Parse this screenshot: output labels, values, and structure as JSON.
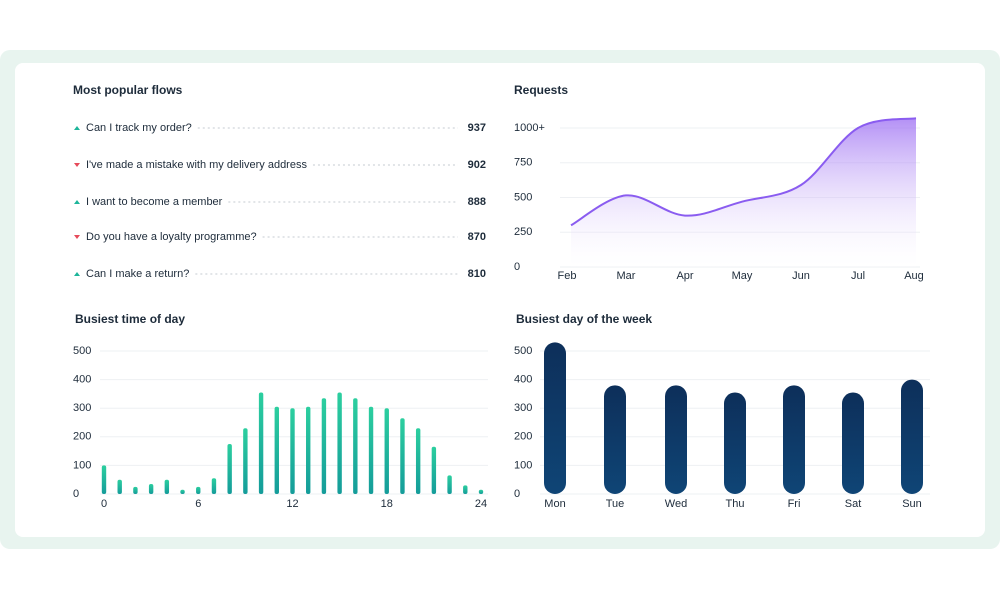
{
  "flows": {
    "title": "Most popular flows",
    "rows": [
      {
        "label": "Can I track my order?",
        "value": 937,
        "trend": "up"
      },
      {
        "label": "I've made a mistake with my delivery address",
        "value": 902,
        "trend": "down"
      },
      {
        "label": "I want to become a member",
        "value": 888,
        "trend": "up"
      },
      {
        "label": "Do you have a loyalty programme?",
        "value": 870,
        "trend": "down"
      },
      {
        "label": "Can I make a return?",
        "value": 810,
        "trend": "up"
      }
    ]
  },
  "chart_data": [
    {
      "type": "line",
      "title": "Requests",
      "categories": [
        "Feb",
        "Mar",
        "Apr",
        "May",
        "Jun",
        "Jul",
        "Aug"
      ],
      "values": [
        300,
        515,
        370,
        470,
        590,
        1000,
        1070
      ],
      "color": "#8a5cf0",
      "ylim": [
        0,
        1000
      ],
      "yticks": [
        0,
        250,
        500,
        750,
        {
          "value": 1000,
          "label": "1000+"
        }
      ]
    },
    {
      "type": "histbar",
      "title": "Busiest time of day",
      "x": [
        0,
        1,
        2,
        3,
        4,
        5,
        6,
        7,
        8,
        9,
        10,
        11,
        12,
        13,
        14,
        15,
        16,
        17,
        18,
        19,
        20,
        21,
        22,
        23,
        24
      ],
      "values": [
        100,
        50,
        25,
        35,
        50,
        15,
        25,
        55,
        175,
        230,
        355,
        305,
        300,
        305,
        335,
        355,
        335,
        305,
        300,
        265,
        230,
        165,
        65,
        30,
        15
      ],
      "color": "#1db59a",
      "xlim": [
        0,
        24
      ],
      "xticks": [
        0,
        6,
        12,
        18,
        24
      ],
      "ylim": [
        0,
        500
      ],
      "yticks": [
        0,
        100,
        200,
        300,
        400,
        500
      ]
    },
    {
      "type": "bar",
      "title": "Busiest day of the week",
      "categories": [
        "Mon",
        "Tue",
        "Wed",
        "Thu",
        "Fri",
        "Sat",
        "Sun"
      ],
      "values": [
        530,
        380,
        380,
        355,
        380,
        355,
        400
      ],
      "color": "#0d3563",
      "ylim": [
        0,
        500
      ],
      "yticks": [
        0,
        100,
        200,
        300,
        400,
        500
      ]
    }
  ]
}
